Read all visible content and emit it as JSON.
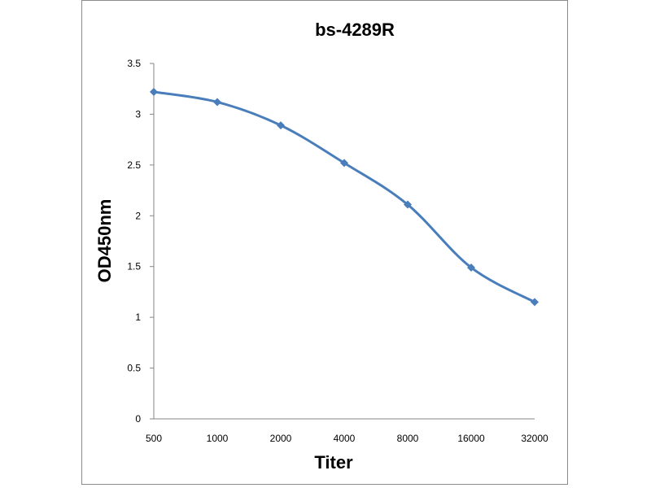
{
  "chart_data": {
    "type": "line",
    "title": "bs-4289R",
    "xlabel": "Titer",
    "ylabel": "OD450nm",
    "categories": [
      "500",
      "1000",
      "2000",
      "4000",
      "8000",
      "16000",
      "32000"
    ],
    "yticks": [
      "0",
      "0.5",
      "1",
      "1.5",
      "2",
      "2.5",
      "3",
      "3.5"
    ],
    "ylim": [
      0,
      3.5
    ],
    "grid": false,
    "legend": "none",
    "series": [
      {
        "values": [
          3.22,
          3.12,
          2.89,
          2.52,
          2.11,
          1.49,
          1.15
        ]
      }
    ],
    "colors": {
      "series": "#4a7ebb",
      "axis": "#868686"
    }
  }
}
